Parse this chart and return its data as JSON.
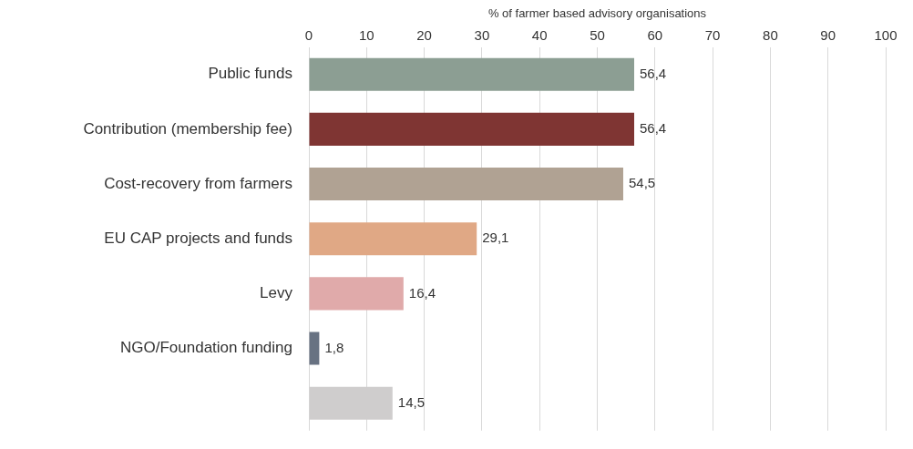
{
  "chart_data": {
    "type": "bar",
    "orientation": "horizontal",
    "xlabel": "% of farmer based advisory organisations",
    "categories": [
      "Public funds",
      "Contribution (membership fee)",
      "Cost-recovery from farmers",
      "EU CAP projects and funds",
      "Levy",
      "NGO/Foundation funding",
      null
    ],
    "values": [
      56.4,
      56.4,
      54.5,
      29.1,
      16.4,
      1.8,
      14.5
    ],
    "value_labels": [
      "56,4",
      "56,4",
      "54,5",
      "29,1",
      "16,4",
      "1,8",
      "14,5"
    ],
    "colors": [
      "#8c9e93",
      "#7f3533",
      "#b0a293",
      "#e0a885",
      "#e0aaaa",
      "#687282",
      "#cfcdcd"
    ],
    "xlim": [
      0,
      100
    ],
    "xticks": [
      0,
      10,
      20,
      30,
      40,
      50,
      60,
      70,
      80,
      90,
      100
    ],
    "grid": "x"
  }
}
